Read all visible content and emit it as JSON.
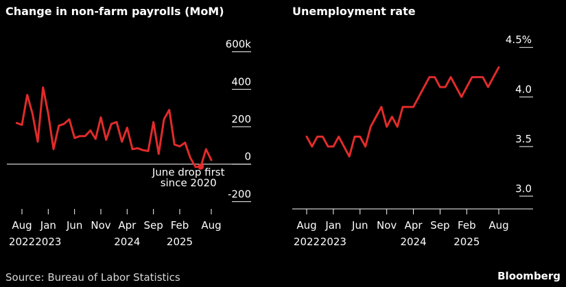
{
  "colors": {
    "background": "#000000",
    "line": "#e22b2b",
    "text": "#ffffff",
    "grid": "#ffffff"
  },
  "chart_data": [
    {
      "type": "line",
      "title": "Change in non-farm payrolls (MoM)",
      "ylim": [
        -250,
        650
      ],
      "yticks": [
        {
          "value": 600,
          "label": "600k"
        },
        {
          "value": 400,
          "label": "400"
        },
        {
          "value": 200,
          "label": "200"
        },
        {
          "value": 0,
          "label": "0"
        },
        {
          "value": -200,
          "label": "-200"
        }
      ],
      "xticks": [
        {
          "month": "2022-08",
          "label": "Aug",
          "year": "2022"
        },
        {
          "month": "2023-01",
          "label": "Jan",
          "year": "2023"
        },
        {
          "month": "2023-06",
          "label": "Jun",
          "year": ""
        },
        {
          "month": "2023-11",
          "label": "Nov",
          "year": ""
        },
        {
          "month": "2024-04",
          "label": "Apr",
          "year": "2024"
        },
        {
          "month": "2024-09",
          "label": "Sep",
          "year": ""
        },
        {
          "month": "2025-02",
          "label": "Feb",
          "year": "2025"
        },
        {
          "month": "2025-08",
          "label": "Aug",
          "year": ""
        }
      ],
      "series": [
        {
          "x": [
            "2022-07",
            "2022-08",
            "2022-09",
            "2022-10",
            "2022-11",
            "2022-12",
            "2023-01",
            "2023-02",
            "2023-03",
            "2023-04",
            "2023-05",
            "2023-06",
            "2023-07",
            "2023-08",
            "2023-09",
            "2023-10",
            "2023-11",
            "2023-12",
            "2024-01",
            "2024-02",
            "2024-03",
            "2024-04",
            "2024-05",
            "2024-06",
            "2024-07",
            "2024-08",
            "2024-09",
            "2024-10",
            "2024-11",
            "2024-12",
            "2025-01",
            "2025-02",
            "2025-03",
            "2025-04",
            "2025-05",
            "2025-06",
            "2025-07",
            "2025-08"
          ],
          "values": [
            220,
            210,
            370,
            270,
            120,
            410,
            270,
            80,
            205,
            215,
            240,
            140,
            150,
            150,
            180,
            135,
            250,
            130,
            215,
            225,
            120,
            195,
            80,
            85,
            75,
            70,
            225,
            55,
            240,
            290,
            105,
            95,
            115,
            35,
            -15,
            -13,
            80,
            22
          ]
        }
      ],
      "highlight": {
        "month": "2025-06",
        "value": -13
      },
      "annotations": [
        {
          "text": "June drop first",
          "month": "2025-03",
          "value": -62
        },
        {
          "text": "since 2020",
          "month": "2025-03",
          "value": -118
        }
      ]
    },
    {
      "type": "line",
      "title": "Unemployment rate",
      "ylim": [
        2.85,
        4.55
      ],
      "yticks": [
        {
          "value": 4.5,
          "label": "4.5%"
        },
        {
          "value": 4.0,
          "label": "4.0"
        },
        {
          "value": 3.5,
          "label": "3.5"
        },
        {
          "value": 3.0,
          "label": "3.0"
        }
      ],
      "xticks": [
        {
          "month": "2022-08",
          "label": "Aug",
          "year": "2022"
        },
        {
          "month": "2023-01",
          "label": "Jan",
          "year": "2023"
        },
        {
          "month": "2023-06",
          "label": "Jun",
          "year": ""
        },
        {
          "month": "2023-11",
          "label": "Nov",
          "year": ""
        },
        {
          "month": "2024-04",
          "label": "Apr",
          "year": "2024"
        },
        {
          "month": "2024-09",
          "label": "Sep",
          "year": ""
        },
        {
          "month": "2025-02",
          "label": "Feb",
          "year": "2025"
        },
        {
          "month": "2025-08",
          "label": "Aug",
          "year": ""
        }
      ],
      "series": [
        {
          "x": [
            "2022-08",
            "2022-09",
            "2022-10",
            "2022-11",
            "2022-12",
            "2023-01",
            "2023-02",
            "2023-03",
            "2023-04",
            "2023-05",
            "2023-06",
            "2023-07",
            "2023-08",
            "2023-09",
            "2023-10",
            "2023-11",
            "2023-12",
            "2024-01",
            "2024-02",
            "2024-03",
            "2024-04",
            "2024-05",
            "2024-06",
            "2024-07",
            "2024-08",
            "2024-09",
            "2024-10",
            "2024-11",
            "2024-12",
            "2025-01",
            "2025-02",
            "2025-03",
            "2025-04",
            "2025-05",
            "2025-06",
            "2025-07",
            "2025-08"
          ],
          "values": [
            3.6,
            3.5,
            3.6,
            3.6,
            3.5,
            3.5,
            3.6,
            3.5,
            3.4,
            3.6,
            3.6,
            3.5,
            3.7,
            3.8,
            3.9,
            3.7,
            3.8,
            3.7,
            3.9,
            3.9,
            3.9,
            4.0,
            4.1,
            4.2,
            4.2,
            4.1,
            4.1,
            4.2,
            4.1,
            4.0,
            4.1,
            4.2,
            4.2,
            4.2,
            4.1,
            4.2,
            4.3
          ]
        }
      ]
    }
  ],
  "source": "Source: Bureau of Labor Statistics",
  "brand": "Bloomberg"
}
